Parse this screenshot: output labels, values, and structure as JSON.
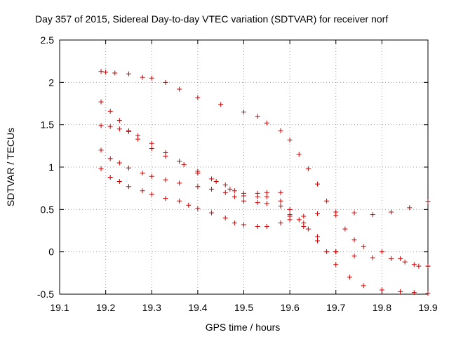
{
  "chart_data": {
    "type": "scatter",
    "title": "Day 357 of 2015, Sidereal Day-to-day VTEC variation (SDTVAR) for receiver norf",
    "xlabel": "GPS time / hours",
    "ylabel": "SDTVAR / TECUs",
    "xlim": [
      19.1,
      19.9
    ],
    "ylim": [
      -0.5,
      2.5
    ],
    "xticks": [
      19.1,
      19.2,
      19.3,
      19.4,
      19.5,
      19.6,
      19.7,
      19.8,
      19.9
    ],
    "xtick_labels": [
      "19.1",
      "19.2",
      "19.3",
      "19.4",
      "19.5",
      "19.6",
      "19.7",
      "19.8",
      "19.9"
    ],
    "yticks": [
      -0.5,
      0,
      0.5,
      1,
      1.5,
      2,
      2.5
    ],
    "ytick_labels": [
      "-0.5",
      "0",
      "0.5",
      "1",
      "1.5",
      "2",
      "2.5"
    ],
    "grid": true,
    "marker": "+",
    "color": "#cc0000",
    "series": [
      {
        "name": "series-1",
        "points": [
          [
            19.19,
            2.13
          ],
          [
            19.2,
            2.12
          ],
          [
            19.22,
            2.11
          ],
          [
            19.25,
            2.1
          ],
          [
            19.28,
            2.06
          ],
          [
            19.3,
            2.05
          ],
          [
            19.33,
            2.0
          ],
          [
            19.36,
            1.92
          ],
          [
            19.4,
            1.82
          ],
          [
            19.45,
            1.74
          ],
          [
            19.5,
            1.65
          ],
          [
            19.53,
            1.6
          ],
          [
            19.55,
            1.52
          ],
          [
            19.58,
            1.43
          ],
          [
            19.6,
            1.32
          ],
          [
            19.62,
            1.15
          ],
          [
            19.64,
            0.98
          ],
          [
            19.66,
            0.8
          ],
          [
            19.68,
            0.6
          ],
          [
            19.7,
            0.43
          ],
          [
            19.72,
            0.27
          ],
          [
            19.74,
            0.14
          ],
          [
            19.76,
            0.06
          ],
          [
            19.8,
            0.0
          ],
          [
            19.84,
            -0.08
          ],
          [
            19.87,
            -0.15
          ],
          [
            19.9,
            -0.17
          ]
        ]
      },
      {
        "name": "series-2",
        "points": [
          [
            19.19,
            1.77
          ],
          [
            19.21,
            1.66
          ],
          [
            19.23,
            1.55
          ],
          [
            19.25,
            1.43
          ],
          [
            19.27,
            1.33
          ],
          [
            19.3,
            1.22
          ],
          [
            19.33,
            1.13
          ],
          [
            19.37,
            1.03
          ],
          [
            19.4,
            0.93
          ],
          [
            19.44,
            0.83
          ],
          [
            19.47,
            0.74
          ],
          [
            19.5,
            0.69
          ],
          [
            19.53,
            0.69
          ],
          [
            19.55,
            0.7
          ],
          [
            19.58,
            0.7
          ],
          [
            19.6,
            0.42
          ],
          [
            19.63,
            0.3
          ],
          [
            19.66,
            0.13
          ],
          [
            19.68,
            0.0
          ],
          [
            19.7,
            -0.15
          ],
          [
            19.73,
            -0.3
          ],
          [
            19.76,
            -0.4
          ],
          [
            19.8,
            -0.45
          ],
          [
            19.84,
            -0.47
          ],
          [
            19.87,
            -0.48
          ],
          [
            19.9,
            -0.49
          ]
        ]
      },
      {
        "name": "series-3",
        "points": [
          [
            19.19,
            1.49
          ],
          [
            19.21,
            1.48
          ],
          [
            19.23,
            1.45
          ],
          [
            19.25,
            1.42
          ],
          [
            19.27,
            1.37
          ],
          [
            19.3,
            1.28
          ],
          [
            19.33,
            1.17
          ],
          [
            19.36,
            1.07
          ],
          [
            19.4,
            0.95
          ],
          [
            19.43,
            0.86
          ],
          [
            19.46,
            0.79
          ],
          [
            19.48,
            0.72
          ],
          [
            19.5,
            0.66
          ],
          [
            19.53,
            0.65
          ],
          [
            19.55,
            0.65
          ],
          [
            19.58,
            0.6
          ],
          [
            19.6,
            0.5
          ],
          [
            19.63,
            0.34
          ],
          [
            19.66,
            0.18
          ],
          [
            19.7,
            0.0
          ],
          [
            19.74,
            -0.05
          ],
          [
            19.78,
            -0.07
          ],
          [
            19.82,
            -0.08
          ],
          [
            19.85,
            -0.12
          ],
          [
            19.88,
            -0.17
          ],
          [
            19.9,
            -0.17
          ]
        ]
      },
      {
        "name": "series-4",
        "points": [
          [
            19.19,
            1.2
          ],
          [
            19.21,
            1.1
          ],
          [
            19.23,
            1.05
          ],
          [
            19.25,
            0.99
          ],
          [
            19.28,
            0.93
          ],
          [
            19.3,
            0.89
          ],
          [
            19.33,
            0.85
          ],
          [
            19.36,
            0.81
          ],
          [
            19.4,
            0.77
          ],
          [
            19.43,
            0.74
          ],
          [
            19.46,
            0.7
          ],
          [
            19.48,
            0.65
          ],
          [
            19.5,
            0.6
          ],
          [
            19.53,
            0.58
          ],
          [
            19.55,
            0.57
          ],
          [
            19.58,
            0.54
          ],
          [
            19.6,
            0.44
          ],
          [
            19.62,
            0.38
          ],
          [
            19.64,
            0.27
          ],
          [
            19.66,
            0.18
          ],
          [
            19.7,
            0.0
          ]
        ]
      },
      {
        "name": "series-5",
        "points": [
          [
            19.19,
            0.98
          ],
          [
            19.21,
            0.88
          ],
          [
            19.23,
            0.83
          ],
          [
            19.25,
            0.77
          ],
          [
            19.28,
            0.72
          ],
          [
            19.3,
            0.68
          ],
          [
            19.33,
            0.63
          ],
          [
            19.36,
            0.6
          ],
          [
            19.38,
            0.55
          ],
          [
            19.4,
            0.51
          ],
          [
            19.43,
            0.46
          ],
          [
            19.46,
            0.4
          ],
          [
            19.48,
            0.34
          ],
          [
            19.5,
            0.32
          ],
          [
            19.53,
            0.3
          ],
          [
            19.55,
            0.3
          ],
          [
            19.58,
            0.34
          ],
          [
            19.6,
            0.38
          ],
          [
            19.63,
            0.42
          ],
          [
            19.66,
            0.45
          ],
          [
            19.7,
            0.47
          ],
          [
            19.74,
            0.46
          ],
          [
            19.78,
            0.44
          ],
          [
            19.82,
            0.47
          ],
          [
            19.86,
            0.52
          ],
          [
            19.9,
            0.59
          ]
        ]
      }
    ]
  }
}
